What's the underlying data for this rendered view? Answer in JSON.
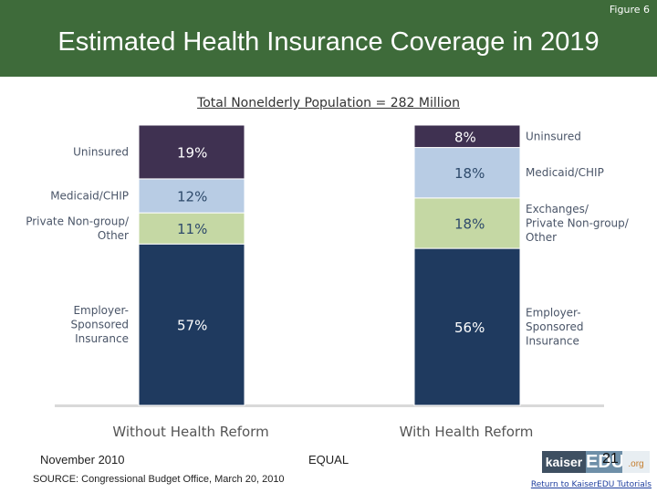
{
  "header": {
    "figure_label": "Figure 6",
    "title": "Estimated Health Insurance Coverage in 2019",
    "background": "#3e6b3a"
  },
  "chart_data": {
    "type": "bar",
    "stacked": true,
    "unit": "%",
    "subtitle": "Total Nonelderly Population = 282 Million",
    "categories": [
      "Without Health Reform",
      "With Health Reform"
    ],
    "series": [
      {
        "key": "employer",
        "values": [
          57,
          56
        ],
        "labels": [
          "57%",
          "56%"
        ],
        "color": "#1f3a5f",
        "text_color": "#ffffff",
        "left_label": [
          "Employer-",
          "Sponsored",
          "Insurance"
        ],
        "right_label": [
          "Employer-",
          "Sponsored",
          "Insurance"
        ]
      },
      {
        "key": "private",
        "values": [
          11,
          18
        ],
        "labels": [
          "11%",
          "18%"
        ],
        "color": "#c5d8a4",
        "text_color": "#2e4a6b",
        "left_label": [
          "Private Non-group/",
          "Other"
        ],
        "right_label": [
          "Exchanges/",
          "Private Non-group/",
          "Other"
        ]
      },
      {
        "key": "medicaid",
        "values": [
          12,
          18
        ],
        "labels": [
          "12%",
          "18%"
        ],
        "color": "#b8cce4",
        "text_color": "#2e4a6b",
        "left_label": [
          "Medicaid/CHIP"
        ],
        "right_label": [
          "Medicaid/CHIP"
        ]
      },
      {
        "key": "uninsured",
        "values": [
          19,
          8
        ],
        "labels": [
          "19%",
          "8%"
        ],
        "color": "#3f3151",
        "text_color": "#ffffff",
        "left_label": [
          "Uninsured"
        ],
        "right_label": [
          "Uninsured"
        ]
      }
    ],
    "ylim": [
      0,
      100
    ],
    "grid": false,
    "legend": "side labels"
  },
  "footer": {
    "date": "November 2010",
    "source": "SOURCE:  Congressional Budget Office, March 20, 2010",
    "equal": "EQUAL",
    "logo_kaiser": "kaiser",
    "logo_edu": "EDU",
    "logo_org": ".org",
    "page_number": "21",
    "return_link": "Return to KaiserEDU Tutorials"
  }
}
